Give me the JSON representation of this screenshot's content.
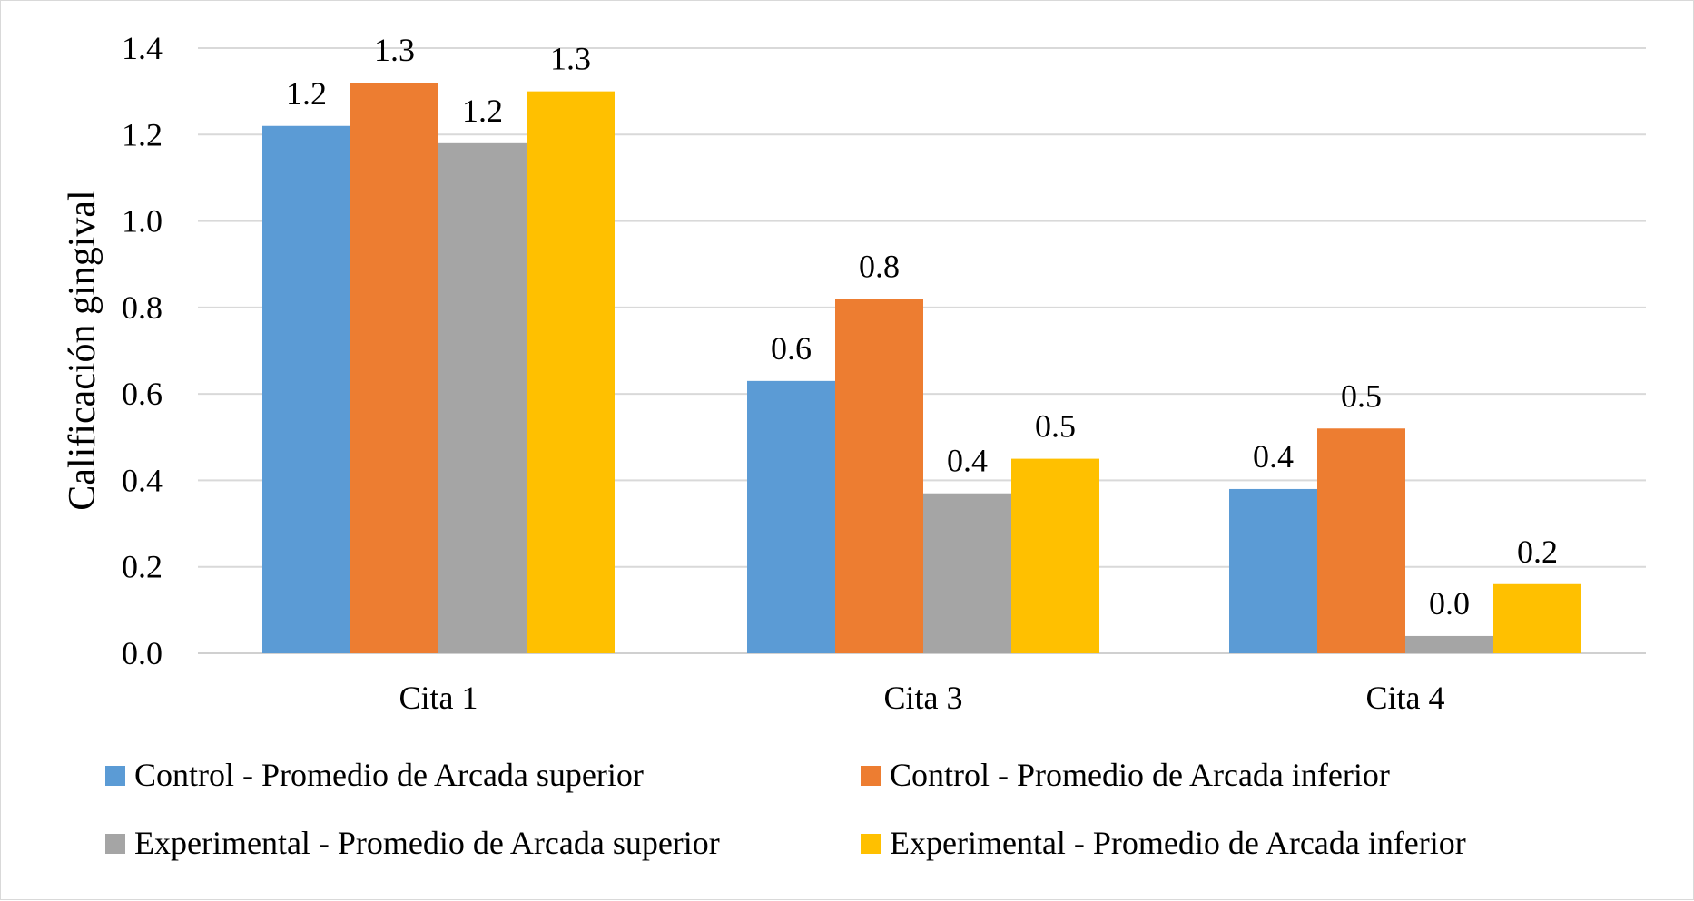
{
  "chart_data": {
    "type": "bar",
    "title": "",
    "xlabel": "",
    "ylabel": "Calificación gingival",
    "categories": [
      "Cita 1",
      "Cita 3",
      "Cita 4"
    ],
    "ylim": [
      0,
      1.4
    ],
    "yticks": [
      0,
      0.2,
      0.4,
      0.6,
      0.8,
      1.0,
      1.2,
      1.4
    ],
    "ytick_labels": [
      "0.0",
      "0.2",
      "0.4",
      "0.6",
      "0.8",
      "1.0",
      "1.2",
      "1.4"
    ],
    "grid": true,
    "legend_position": "bottom",
    "series": [
      {
        "name": "Control - Promedio de Arcada superior",
        "color": "#5B9BD5",
        "values": [
          1.22,
          0.63,
          0.38
        ],
        "labels": [
          "1.2",
          "0.6",
          "0.4"
        ]
      },
      {
        "name": "Control - Promedio de Arcada inferior",
        "color": "#ED7D31",
        "values": [
          1.32,
          0.82,
          0.52
        ],
        "labels": [
          "1.3",
          "0.8",
          "0.5"
        ]
      },
      {
        "name": "Experimental - Promedio de Arcada superior",
        "color": "#A5A5A5",
        "values": [
          1.18,
          0.37,
          0.04
        ],
        "labels": [
          "1.2",
          "0.4",
          "0.0"
        ]
      },
      {
        "name": "Experimental - Promedio de Arcada inferior",
        "color": "#FFC000",
        "values": [
          1.3,
          0.45,
          0.16
        ],
        "labels": [
          "1.3",
          "0.5",
          "0.2"
        ]
      }
    ]
  }
}
